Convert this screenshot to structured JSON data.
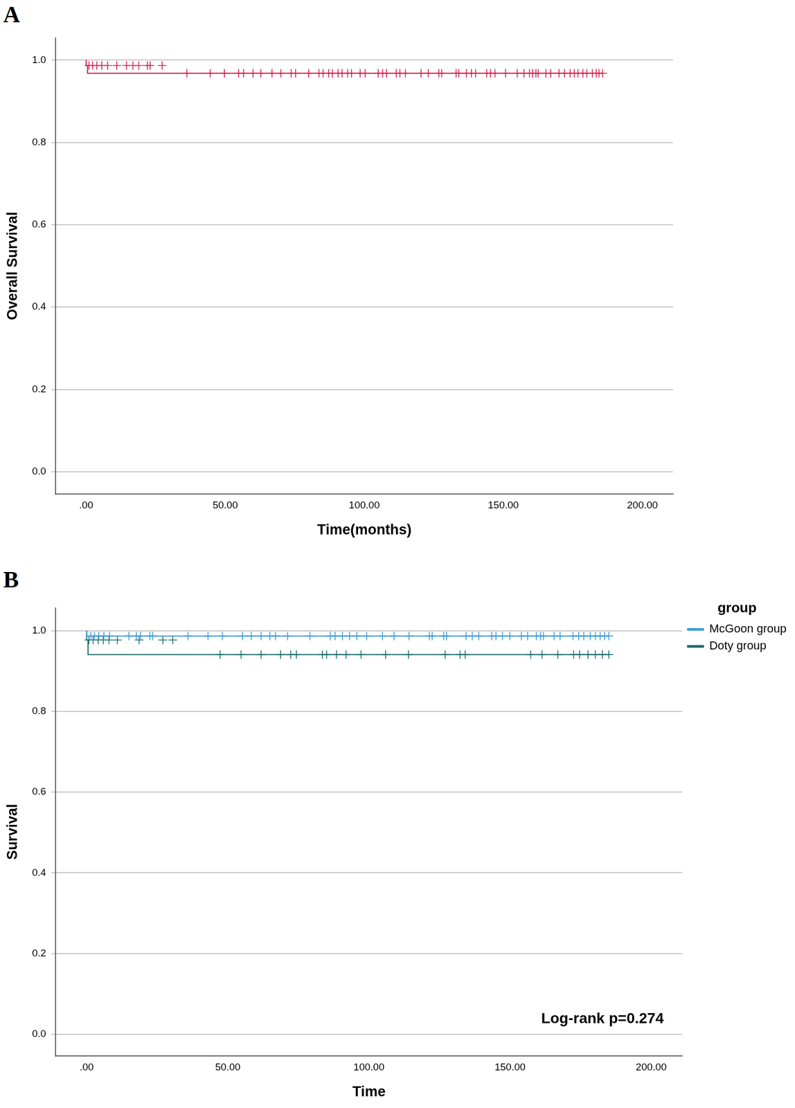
{
  "chart_data": [
    {
      "type": "line",
      "title": "A",
      "x_label": "Time(months)",
      "y_label": "Overall Survival",
      "xlim": [
        -11,
        211
      ],
      "xticks": [
        {
          "value": 0,
          "label": ".00"
        },
        {
          "value": 50,
          "label": "50.00"
        },
        {
          "value": 100,
          "label": "100.00"
        },
        {
          "value": 150,
          "label": "150.00"
        },
        {
          "value": 200,
          "label": "200.00"
        }
      ],
      "ylim": [
        -0.054,
        1.054
      ],
      "yticks": [
        {
          "value": 0,
          "label": "0.0"
        },
        0.2,
        0.4,
        0.6,
        0.8,
        {
          "value": 1,
          "label": "1.0"
        }
      ],
      "grid": "y",
      "series": [
        {
          "name": "Overall Survival",
          "type": "step",
          "color": "#d01c4b",
          "line_style": "solid",
          "x": [
            0,
            0.5,
            35.5,
            185.7
          ],
          "values": [
            1,
            0.987,
            0.968,
            0.968
          ]
        },
        {
          "type": "scatter",
          "marker": "cross",
          "color": "#d01c4b",
          "x": [
            1,
            2.3,
            3.8,
            5.6,
            7.7,
            11,
            14.5,
            16.8,
            18.9,
            22,
            23,
            27.3
          ],
          "values": [
            0.987,
            0.987,
            0.987,
            0.987,
            0.987,
            0.987,
            0.987,
            0.987,
            0.987,
            0.987,
            0.987,
            0.987
          ]
        },
        {
          "type": "scatter",
          "marker": "cross",
          "color": "#d01c4b",
          "x": [
            36.2,
            44.6,
            49.7,
            54.8,
            56.6,
            60,
            62.8,
            66.8,
            70,
            73.7,
            75.3,
            80,
            83.7,
            85.2,
            87.2,
            88.5,
            90.6,
            92,
            94,
            95.4,
            98.5,
            100.3,
            105,
            106.6,
            108,
            111.5,
            112.8,
            114.8,
            120.4,
            123,
            126.8,
            127.8,
            133,
            134,
            136.7,
            138.5,
            140,
            144,
            145.4,
            147,
            150.8,
            155,
            157.4,
            159.4,
            160.5,
            161.7,
            162.5,
            165.3,
            167,
            170,
            172,
            174,
            175.5,
            176.8,
            178.6,
            180,
            182,
            183.4,
            184.4,
            185.7
          ],
          "values": [
            0.968,
            0.968,
            0.968,
            0.968,
            0.968,
            0.968,
            0.968,
            0.968,
            0.968,
            0.968,
            0.968,
            0.968,
            0.968,
            0.968,
            0.968,
            0.968,
            0.968,
            0.968,
            0.968,
            0.968,
            0.968,
            0.968,
            0.968,
            0.968,
            0.968,
            0.968,
            0.968,
            0.968,
            0.968,
            0.968,
            0.968,
            0.968,
            0.968,
            0.968,
            0.968,
            0.968,
            0.968,
            0.968,
            0.968,
            0.968,
            0.968,
            0.968,
            0.968,
            0.968,
            0.968,
            0.968,
            0.968,
            0.968,
            0.968,
            0.968,
            0.968,
            0.968,
            0.968,
            0.968,
            0.968,
            0.968,
            0.968,
            0.968,
            0.968,
            0.968
          ]
        }
      ]
    },
    {
      "type": "line",
      "title": "B",
      "x_label": "Time",
      "y_label": "Survival",
      "xlim": [
        -11,
        211
      ],
      "xticks": [
        {
          "value": 0,
          "label": ".00"
        },
        {
          "value": 50,
          "label": "50.00"
        },
        {
          "value": 100,
          "label": "100.00"
        },
        {
          "value": 150,
          "label": "150.00"
        },
        {
          "value": 200,
          "label": "200.00"
        }
      ],
      "ylim": [
        -0.054,
        1.057
      ],
      "yticks": [
        {
          "value": 0,
          "label": "0.0"
        },
        0.2,
        0.4,
        0.6,
        0.8,
        {
          "value": 1,
          "label": "1.0"
        }
      ],
      "grid": "y",
      "legend": "right",
      "legend_title": "group",
      "annotation": "Log-rank p=0.274",
      "series": [
        {
          "name": "McGoon group",
          "type": "step",
          "color": "#3c9bd7",
          "line_style": "solid",
          "x": [
            0,
            0.5,
            185
          ],
          "values": [
            1,
            0.987,
            0.987
          ]
        },
        {
          "name": "Doty group",
          "type": "step",
          "color": "#1e6b6b",
          "line_style": "solid",
          "x": [
            0,
            0.5,
            35.9,
            185
          ],
          "values": [
            1,
            0.977,
            0.941,
            0.941
          ]
        },
        {
          "type": "scatter",
          "marker": "cross",
          "color": "#3c9bd7",
          "x": [
            1.5,
            2.8,
            4.3,
            6.1,
            8.1,
            15,
            17.6,
            19.1,
            22.4,
            23.4,
            35.9,
            43,
            48.1,
            55.2,
            58.3,
            61.8,
            64.9,
            66.9,
            71.2,
            79.1,
            86.3,
            88,
            90.6,
            93.1,
            95.7,
            99.2,
            104.8,
            108.9,
            114.2,
            121.4,
            122.4,
            126.5,
            127.5,
            134.4,
            136.6,
            138.9,
            143.5,
            145,
            147.3,
            149.9,
            154,
            156.2,
            159.3,
            160.8,
            161.8,
            165.6,
            167.7,
            172.3,
            174.3,
            176.1,
            178.4,
            180.2,
            181.9,
            183.5,
            185
          ],
          "values": [
            0.987,
            0.987,
            0.987,
            0.987,
            0.987,
            0.987,
            0.987,
            0.987,
            0.987,
            0.987,
            0.987,
            0.987,
            0.987,
            0.987,
            0.987,
            0.987,
            0.987,
            0.987,
            0.987,
            0.987,
            0.987,
            0.987,
            0.987,
            0.987,
            0.987,
            0.987,
            0.987,
            0.987,
            0.987,
            0.987,
            0.987,
            0.987,
            0.987,
            0.987,
            0.987,
            0.987,
            0.987,
            0.987,
            0.987,
            0.987,
            0.987,
            0.987,
            0.987,
            0.987,
            0.987,
            0.987,
            0.987,
            0.987,
            0.987,
            0.987,
            0.987,
            0.987,
            0.987,
            0.987,
            0.987
          ]
        },
        {
          "type": "scatter",
          "marker": "cross",
          "color": "#1e6b6b",
          "x": [
            0.8,
            2.3,
            4.1,
            5.9,
            7.9,
            10.9,
            18.6,
            27,
            30.5
          ],
          "values": [
            0.977,
            0.977,
            0.977,
            0.977,
            0.977,
            0.977,
            0.977,
            0.977,
            0.977
          ]
        },
        {
          "type": "scatter",
          "marker": "cross",
          "color": "#1e6b6b",
          "x": [
            47.3,
            54.7,
            61.8,
            68.7,
            72.3,
            74.3,
            83.5,
            85,
            88.5,
            91.9,
            97.2,
            105.9,
            114,
            127,
            132.3,
            134.1,
            157.3,
            161.3,
            166.9,
            172.5,
            174.6,
            177.6,
            180.2,
            182.7,
            185
          ],
          "values": [
            0.941,
            0.941,
            0.941,
            0.941,
            0.941,
            0.941,
            0.941,
            0.941,
            0.941,
            0.941,
            0.941,
            0.941,
            0.941,
            0.941,
            0.941,
            0.941,
            0.941,
            0.941,
            0.941,
            0.941,
            0.941,
            0.941,
            0.941,
            0.941,
            0.941
          ]
        }
      ]
    }
  ]
}
